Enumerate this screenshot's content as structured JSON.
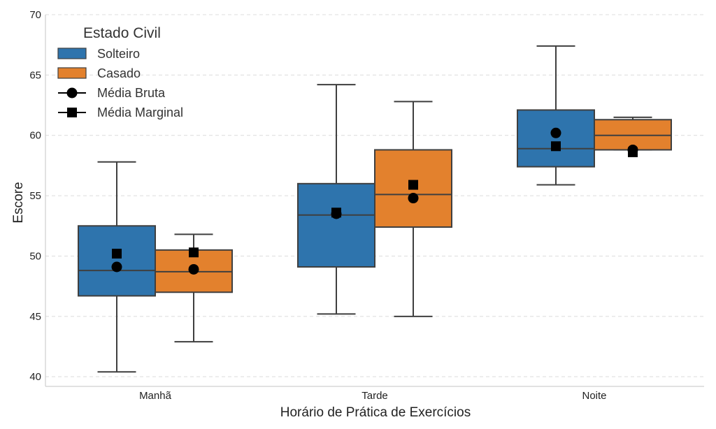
{
  "chart_data": {
    "type": "box",
    "title": "",
    "xlabel": "Horário de Prática de Exercícios",
    "ylabel": "Escore",
    "ylim": [
      39.2,
      70
    ],
    "yticks": [
      40,
      45,
      50,
      55,
      60,
      65,
      70
    ],
    "grid": "y-dashed",
    "categories": [
      "Manhã",
      "Tarde",
      "Noite"
    ],
    "legend": {
      "title": "Estado Civil",
      "position": "top-left",
      "entries": [
        {
          "label": "Solteiro",
          "kind": "patch",
          "color": "#2e74ad"
        },
        {
          "label": "Casado",
          "kind": "patch",
          "color": "#e3812d"
        },
        {
          "label": "Média Bruta",
          "kind": "circle"
        },
        {
          "label": "Média Marginal",
          "kind": "square"
        }
      ]
    },
    "series": [
      {
        "name": "Solteiro",
        "color": "#2e74ad",
        "boxes": [
          {
            "category": "Manhã",
            "whisker_low": 40.4,
            "q1": 46.7,
            "median": 48.8,
            "q3": 52.5,
            "whisker_high": 57.8,
            "mean_raw": 49.1,
            "mean_marginal": 50.2
          },
          {
            "category": "Tarde",
            "whisker_low": 45.2,
            "q1": 49.1,
            "median": 53.4,
            "q3": 56.0,
            "whisker_high": 64.2,
            "mean_raw": 53.5,
            "mean_marginal": 53.6
          },
          {
            "category": "Noite",
            "whisker_low": 55.9,
            "q1": 57.4,
            "median": 58.9,
            "q3": 62.1,
            "whisker_high": 67.4,
            "mean_raw": 60.2,
            "mean_marginal": 59.1
          }
        ]
      },
      {
        "name": "Casado",
        "color": "#e3812d",
        "boxes": [
          {
            "category": "Manhã",
            "whisker_low": 42.9,
            "q1": 47.0,
            "median": 48.7,
            "q3": 50.5,
            "whisker_high": 51.8,
            "mean_raw": 48.9,
            "mean_marginal": 50.3
          },
          {
            "category": "Tarde",
            "whisker_low": 45.0,
            "q1": 52.4,
            "median": 55.1,
            "q3": 58.8,
            "whisker_high": 62.8,
            "mean_raw": 54.8,
            "mean_marginal": 55.9
          },
          {
            "category": "Noite",
            "whisker_low": 58.8,
            "q1": 58.8,
            "median": 60.0,
            "q3": 61.3,
            "whisker_high": 61.5,
            "mean_raw": 58.8,
            "mean_marginal": 58.6
          }
        ]
      }
    ]
  }
}
